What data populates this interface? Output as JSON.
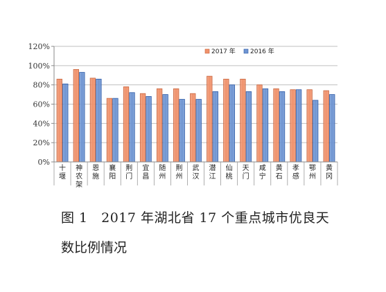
{
  "chart_data": {
    "type": "bar",
    "categories": [
      "十堰",
      "神农架",
      "恩施",
      "襄阳",
      "荆门",
      "宜昌",
      "随州",
      "荆州",
      "武汉",
      "潜江",
      "仙桃",
      "天门",
      "咸宁",
      "黄石",
      "孝感",
      "鄂州",
      "黄冈"
    ],
    "series": [
      {
        "name": "2017 年",
        "color": "#f0926c",
        "values": [
          86,
          96,
          87,
          66,
          78,
          71,
          76,
          76,
          71,
          89,
          86,
          86,
          80,
          76,
          75,
          75,
          74
        ]
      },
      {
        "name": "2016 年",
        "color": "#6f95d2",
        "values": [
          81,
          93,
          86,
          66,
          72,
          68,
          70,
          65,
          65,
          73,
          80,
          73,
          76,
          73,
          75,
          64,
          70
        ]
      }
    ],
    "ylim": [
      0,
      120
    ],
    "yticks": [
      "0%",
      "20%",
      "40%",
      "60%",
      "80%",
      "100%",
      "120%"
    ],
    "grid": true,
    "legend": "top-right"
  },
  "caption": {
    "line1": "图 1　2017 年湖北省 17 个重点城市优良天",
    "line2": "数比例情况"
  }
}
